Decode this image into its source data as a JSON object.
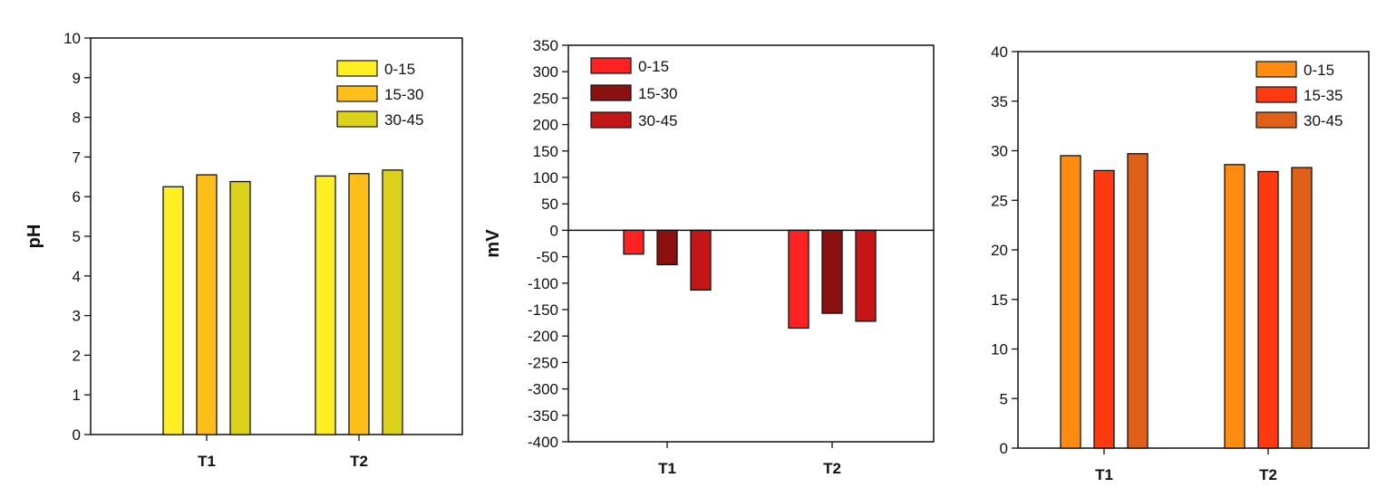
{
  "chart_data": [
    {
      "type": "bar",
      "title": "",
      "xlabel": "",
      "ylabel": "pH",
      "ylim": [
        0,
        10
      ],
      "yticks": [
        0,
        1,
        2,
        3,
        4,
        5,
        6,
        7,
        8,
        9,
        10
      ],
      "categories": [
        "T1",
        "T2"
      ],
      "legend_position": "top-right",
      "series": [
        {
          "name": "0-15",
          "color": "#ffee22",
          "values": [
            6.25,
            6.52
          ]
        },
        {
          "name": "15-30",
          "color": "#ffbf1a",
          "values": [
            6.55,
            6.58
          ]
        },
        {
          "name": "30-45",
          "color": "#dcd21c",
          "values": [
            6.38,
            6.67
          ]
        }
      ]
    },
    {
      "type": "bar",
      "title": "",
      "xlabel": "",
      "ylabel": "mV",
      "ylim": [
        -400,
        350
      ],
      "yticks": [
        -400,
        -350,
        -300,
        -250,
        -200,
        -150,
        -100,
        -50,
        0,
        50,
        100,
        150,
        200,
        250,
        300,
        350
      ],
      "categories": [
        "T1",
        "T2"
      ],
      "legend_position": "top-left",
      "series": [
        {
          "name": "0-15",
          "color": "#ff2222",
          "values": [
            -45,
            -185
          ]
        },
        {
          "name": "15-30",
          "color": "#8b1010",
          "values": [
            -65,
            -157
          ]
        },
        {
          "name": "30-45",
          "color": "#c41616",
          "values": [
            -113,
            -172
          ]
        }
      ]
    },
    {
      "type": "bar",
      "title": "",
      "xlabel": "",
      "ylabel": "",
      "ylim": [
        0,
        40
      ],
      "yticks": [
        0,
        5,
        10,
        15,
        20,
        25,
        30,
        35,
        40
      ],
      "categories": [
        "T1",
        "T2"
      ],
      "legend_position": "top-right",
      "series": [
        {
          "name": "0-15",
          "color": "#ff8c10",
          "values": [
            29.5,
            28.6
          ]
        },
        {
          "name": "15-35",
          "color": "#ff3a10",
          "values": [
            28.0,
            27.9
          ]
        },
        {
          "name": "30-45",
          "color": "#e0601a",
          "values": [
            29.7,
            28.3
          ]
        }
      ]
    }
  ]
}
